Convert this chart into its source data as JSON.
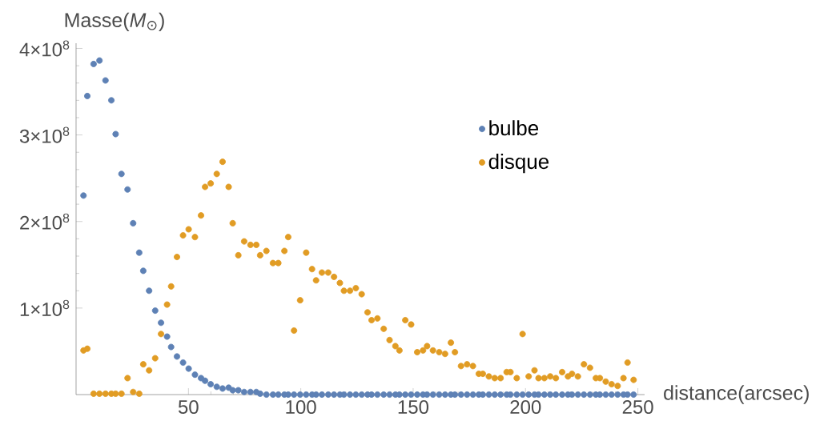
{
  "chart_data": {
    "type": "scatter",
    "xlabel": "distance(arcsec)",
    "ylabel": "Masse(*M*$_{⊙}$)",
    "x": [
      3.3,
      5.0,
      7.8,
      10.4,
      13.1,
      15.7,
      17.6,
      20.2,
      22.9,
      25.4,
      28.1,
      29.9,
      32.5,
      35.2,
      37.8,
      40.5,
      42.3,
      44.9,
      47.6,
      50.1,
      52.9,
      55.6,
      57.4,
      59.9,
      62.6,
      65.2,
      67.9,
      69.7,
      72.2,
      74.8,
      77.6,
      80.2,
      81.9,
      84.7,
      87.6,
      90.0,
      92.7,
      94.4,
      97.0,
      99.7,
      102.4,
      105.0,
      106.8,
      109.4,
      112.2,
      114.8,
      117.4,
      119.2,
      121.9,
      124.5,
      127.1,
      129.7,
      131.5,
      134.1,
      136.9,
      139.5,
      142.1,
      143.9,
      146.5,
      149.1,
      151.8,
      154.4,
      156.2,
      158.8,
      161.6,
      164.2,
      166.8,
      168.6,
      171.3,
      174.0,
      176.6,
      179.2,
      181.0,
      183.7,
      186.3,
      188.9,
      191.6,
      193.3,
      196.1,
      198.7,
      201.4,
      204.0,
      205.8,
      208.4,
      211.0,
      213.5,
      216.3,
      218.9,
      220.7,
      223.3,
      226.0,
      228.7,
      231.3,
      233.1,
      235.7,
      238.3,
      241.0,
      243.6,
      245.4,
      248.1
    ],
    "series": [
      {
        "name": "bulbe",
        "color": "#5e81b5",
        "values": [
          230000000.0,
          345000000.0,
          382000000.0,
          386000000.0,
          363000000.0,
          340000000.0,
          301000000.0,
          255000000.0,
          237000000.0,
          198000000.0,
          164000000.0,
          143000000.0,
          120000000.0,
          97000000.0,
          83000000.0,
          67000000.0,
          55000000.0,
          44000000.0,
          37000000.0,
          30000000.0,
          23000000.0,
          19000000.0,
          16000000.0,
          12000000.0,
          9000000.0,
          7000000.0,
          8000000.0,
          5000000.0,
          5000000.0,
          3000000.0,
          3000000.0,
          3000000.0,
          1000000.0,
          0,
          0,
          0,
          0,
          0,
          0,
          0,
          0,
          0,
          0,
          0,
          0,
          0,
          0,
          0,
          0,
          0,
          0,
          0,
          0,
          0,
          0,
          0,
          0,
          0,
          0,
          0,
          0,
          0,
          0,
          0,
          0,
          0,
          0,
          0,
          0,
          0,
          0,
          0,
          0,
          0,
          0,
          0,
          0,
          0,
          0,
          0,
          0,
          0,
          0,
          0,
          0,
          0,
          0,
          0,
          0,
          0,
          0,
          0,
          0,
          0,
          0,
          0,
          0,
          0,
          0,
          0
        ]
      },
      {
        "name": "disque",
        "color": "#e19c24",
        "values": [
          51000000.0,
          53000000.0,
          1000000.0,
          1000000.0,
          1000000.0,
          1000000.0,
          1000000.0,
          1000000.0,
          19000000.0,
          3000000.0,
          1000000.0,
          35000000.0,
          28000000.0,
          42000000.0,
          70000000.0,
          104000000.0,
          125000000.0,
          159000000.0,
          184000000.0,
          191000000.0,
          182000000.0,
          207000000.0,
          240000000.0,
          244000000.0,
          255000000.0,
          269000000.0,
          240000000.0,
          198000000.0,
          161000000.0,
          177000000.0,
          173000000.0,
          173000000.0,
          161000000.0,
          166000000.0,
          152000000.0,
          152000000.0,
          166000000.0,
          182000000.0,
          74000000.0,
          109000000.0,
          164000000.0,
          145000000.0,
          132000000.0,
          141000000.0,
          141000000.0,
          136000000.0,
          129000000.0,
          120000000.0,
          120000000.0,
          123000000.0,
          116000000.0,
          95000000.0,
          86000000.0,
          88000000.0,
          76000000.0,
          63000000.0,
          56000000.0,
          51000000.0,
          86000000.0,
          81000000.0,
          49000000.0,
          51000000.0,
          56000000.0,
          51000000.0,
          49000000.0,
          47000000.0,
          60000000.0,
          49000000.0,
          33000000.0,
          35000000.0,
          33000000.0,
          24000000.0,
          24000000.0,
          21000000.0,
          19000000.0,
          19000000.0,
          26000000.0,
          26000000.0,
          19000000.0,
          70000000.0,
          21000000.0,
          28000000.0,
          19000000.0,
          19000000.0,
          21000000.0,
          19000000.0,
          26000000.0,
          21000000.0,
          24000000.0,
          21000000.0,
          35000000.0,
          31000000.0,
          19000000.0,
          19000000.0,
          15000000.0,
          12000000.0,
          10000000.0,
          19000000.0,
          37000000.0,
          17000000.0
        ]
      }
    ],
    "xlim": [
      0,
      253
    ],
    "ylim": [
      0,
      406000000.0
    ],
    "xticks": [
      50,
      100,
      150,
      200,
      250
    ],
    "yticks": [
      {
        "value": 100000000.0,
        "label": "1×10$^{8}$"
      },
      {
        "value": 200000000.0,
        "label": "2×10$^{8}$"
      },
      {
        "value": 300000000.0,
        "label": "3×10$^{8}$"
      },
      {
        "value": 400000000.0,
        "label": "4×10$^{8}$"
      }
    ],
    "marker": "circle",
    "legend": "top right"
  }
}
